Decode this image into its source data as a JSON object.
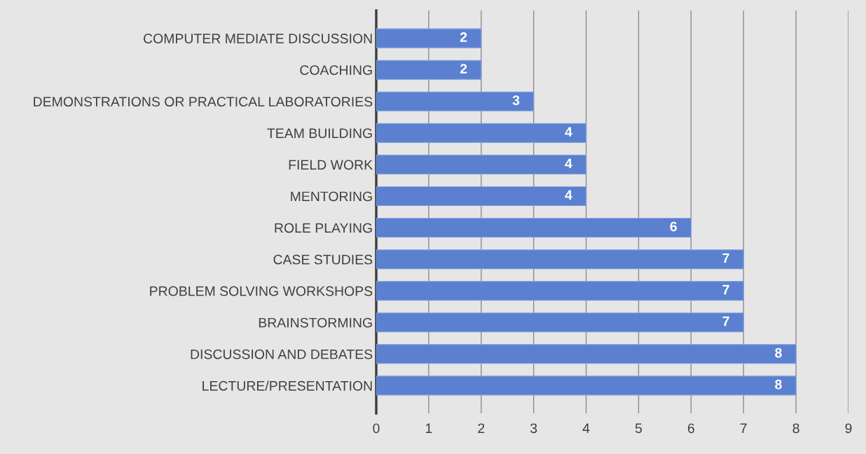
{
  "chart_data": {
    "type": "bar",
    "orientation": "horizontal",
    "categories": [
      "COMPUTER MEDIATE DISCUSSION",
      "COACHING",
      "DEMONSTRATIONS OR PRACTICAL LABORATORIES",
      "TEAM BUILDING",
      "FIELD WORK",
      "MENTORING",
      "ROLE PLAYING",
      "CASE STUDIES",
      "PROBLEM SOLVING WORKSHOPS",
      "BRAINSTORMING",
      "DISCUSSION AND DEBATES",
      "LECTURE/PRESENTATION"
    ],
    "values": [
      2,
      2,
      3,
      4,
      4,
      4,
      6,
      7,
      7,
      7,
      8,
      8
    ],
    "color": "#5b80cf",
    "xlim": [
      0,
      9
    ],
    "xticks": [
      0,
      1,
      2,
      3,
      4,
      5,
      6,
      7,
      8,
      9
    ],
    "grid": "x",
    "data_labels": true
  }
}
